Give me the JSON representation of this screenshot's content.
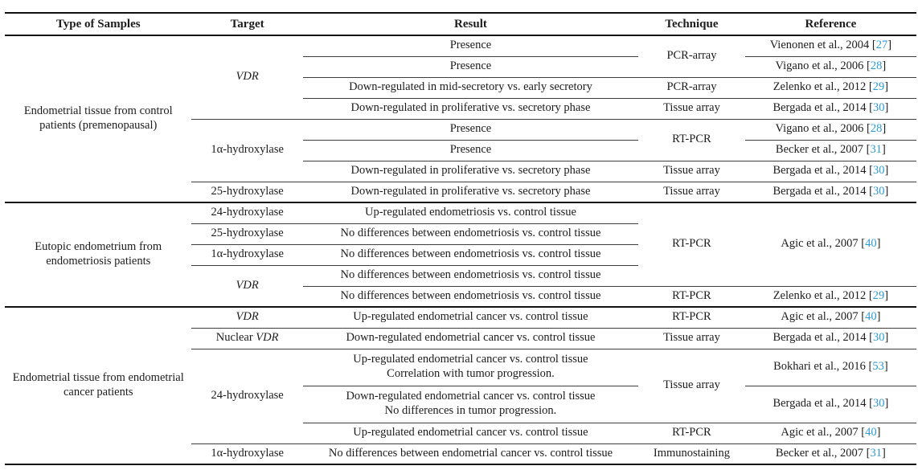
{
  "page": {
    "background": "#ffffff",
    "text_color": "#1c1c1c",
    "rule_color_thin": "#3d3d3d",
    "rule_color_thick": "#111111",
    "citation_color": "#2e9ad6"
  },
  "table": {
    "columns": [
      {
        "key": "sample",
        "label": "Type of Samples"
      },
      {
        "key": "target",
        "label": "Target"
      },
      {
        "key": "result",
        "label": "Result"
      },
      {
        "key": "technique",
        "label": "Technique"
      },
      {
        "key": "reference",
        "label": "Reference"
      }
    ],
    "sections": [
      {
        "sample": "Endometrial tissue from control patients (premenopausal)",
        "rows": [
          {
            "target": {
              "text": "VDR",
              "italic": true,
              "rowspan": 4
            },
            "result": [
              "Presence"
            ],
            "technique": {
              "text": "PCR-array",
              "rowspan": 2
            },
            "reference": {
              "authors": "Vienonen et al., 2004",
              "cite": "27"
            }
          },
          {
            "result": [
              "Presence"
            ],
            "reference": {
              "authors": "Vigano et al., 2006",
              "cite": "28"
            }
          },
          {
            "result": [
              "Down-regulated in mid-secretory vs. early secretory"
            ],
            "technique": {
              "text": "PCR-array"
            },
            "reference": {
              "authors": "Zelenko et al., 2012",
              "cite": "29"
            }
          },
          {
            "result": [
              "Down-regulated in proliferative vs. secretory phase"
            ],
            "technique": {
              "text": "Tissue array"
            },
            "reference": {
              "authors": "Bergada et al., 2014",
              "cite": "30"
            }
          },
          {
            "target": {
              "text": "1α-hydroxylase",
              "rowspan": 3
            },
            "result": [
              "Presence"
            ],
            "technique": {
              "text": "RT-PCR",
              "rowspan": 2
            },
            "reference": {
              "authors": "Vigano et al., 2006",
              "cite": "28"
            }
          },
          {
            "result": [
              "Presence"
            ],
            "reference": {
              "authors": "Becker et al., 2007",
              "cite": "31"
            }
          },
          {
            "result": [
              "Down-regulated in proliferative vs. secretory phase"
            ],
            "technique": {
              "text": "Tissue array"
            },
            "reference": {
              "authors": "Bergada et al., 2014",
              "cite": "30"
            }
          },
          {
            "target": {
              "text": "25-hydroxylase"
            },
            "result": [
              "Down-regulated in proliferative vs. secretory phase"
            ],
            "technique": {
              "text": "Tissue array"
            },
            "reference": {
              "authors": "Bergada et al., 2014",
              "cite": "30"
            }
          }
        ]
      },
      {
        "sample": "Eutopic endometrium from endometriosis patients",
        "rows": [
          {
            "target": {
              "text": "24-hydroxylase"
            },
            "result": [
              "Up-regulated endometriosis vs. control tissue"
            ],
            "technique": {
              "text": "RT-PCR",
              "rowspan": 4
            },
            "reference": {
              "authors": "Agic et al., 2007",
              "cite": "40",
              "rowspan": 4
            }
          },
          {
            "target": {
              "text": "25-hydroxylase"
            },
            "result": [
              "No differences between endometriosis vs. control tissue"
            ]
          },
          {
            "target": {
              "text": "1α-hydroxylase"
            },
            "result": [
              "No differences between endometriosis vs. control tissue"
            ]
          },
          {
            "target": {
              "text": "VDR",
              "italic": true,
              "rowspan": 2
            },
            "result": [
              "No differences between endometriosis vs. control tissue"
            ]
          },
          {
            "result": [
              "No differences between endometriosis vs. control tissue"
            ],
            "technique": {
              "text": "RT-PCR"
            },
            "reference": {
              "authors": "Zelenko et al., 2012",
              "cite": "29"
            }
          }
        ]
      },
      {
        "sample": "Endometrial tissue from endometrial cancer patients",
        "rows": [
          {
            "target": {
              "text": "VDR",
              "italic": true
            },
            "result": [
              "Up-regulated endometrial cancer vs. control tissue"
            ],
            "technique": {
              "text": "RT-PCR"
            },
            "reference": {
              "authors": "Agic et al., 2007",
              "cite": "40"
            }
          },
          {
            "target": {
              "text": "VDR",
              "italic": true,
              "prefix": "Nuclear "
            },
            "result": [
              "Down-regulated endometrial cancer vs. control tissue"
            ],
            "technique": {
              "text": "Tissue array"
            },
            "reference": {
              "authors": "Bergada et al., 2014",
              "cite": "30"
            }
          },
          {
            "target": {
              "text": "24-hydroxylase",
              "rowspan": 3
            },
            "result": [
              "Up-regulated endometrial cancer vs. control tissue",
              "Correlation with tumor progression."
            ],
            "technique": {
              "text": "Tissue array",
              "rowspan": 2
            },
            "reference": {
              "authors": "Bokhari et al., 2016",
              "cite": "53"
            },
            "tall": true
          },
          {
            "result": [
              "Down-regulated endometrial cancer vs. control tissue",
              "No differences in tumor progression."
            ],
            "reference": {
              "authors": "Bergada et al., 2014",
              "cite": "30"
            },
            "tall": true
          },
          {
            "result": [
              "Up-regulated endometrial cancer vs. control tissue"
            ],
            "technique": {
              "text": "RT-PCR"
            },
            "reference": {
              "authors": "Agic et al., 2007",
              "cite": "40"
            }
          },
          {
            "target": {
              "text": "1α-hydroxylase"
            },
            "result": [
              "No differences between endometrial cancer vs. control tissue"
            ],
            "technique": {
              "text": "Immunostaining"
            },
            "reference": {
              "authors": "Becker et al., 2007",
              "cite": "31"
            }
          }
        ]
      }
    ]
  }
}
